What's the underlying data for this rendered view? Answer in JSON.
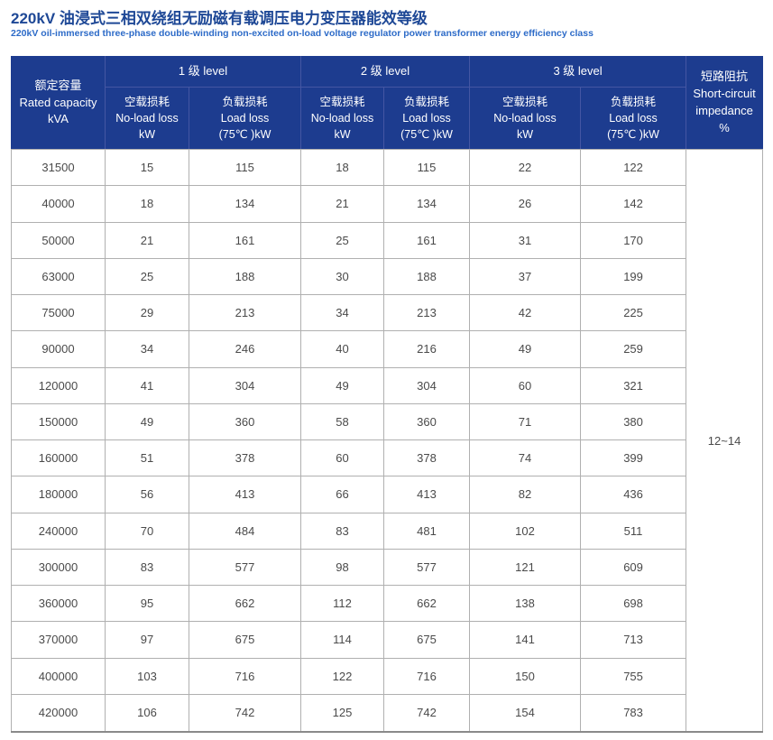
{
  "page": {
    "title": "220kV 油浸式三相双绕组无励磁有载调压电力变压器能效等级",
    "subtitle": "220kV oil-immersed three-phase double-winding non-excited on-load voltage regulator power transformer energy efficiency class"
  },
  "colors": {
    "header-bg": "#1d3c8f",
    "header-border": "#4456a3",
    "title-color": "#1e4896",
    "subtitle-color": "#2d6bc8",
    "body-border": "#b0b0b0",
    "body-text": "#4a4a4a",
    "table-bottom-border": "#8a8a8a"
  },
  "table": {
    "header": {
      "rated_capacity": "额定容量\nRated capacity\nkVA",
      "levels": [
        {
          "group": "1 级 level",
          "no_load": "空载损耗\nNo-load loss\nkW",
          "load": "负载损耗\nLoad loss\n(75℃ )kW"
        },
        {
          "group": "2 级 level",
          "no_load": "空载损耗\nNo-load loss\nkW",
          "load": "负载损耗\nLoad loss\n(75℃ )kW"
        },
        {
          "group": "3 级 level",
          "no_load": "空载损耗\nNo-load loss\nkW",
          "load": "负载损耗\nLoad loss\n(75℃ )kW"
        }
      ],
      "impedance": "短路阻抗\nShort-circuit\nimpedance\n%"
    },
    "rows": [
      [
        "31500",
        "15",
        "115",
        "18",
        "115",
        "22",
        "122"
      ],
      [
        "40000",
        "18",
        "134",
        "21",
        "134",
        "26",
        "142"
      ],
      [
        "50000",
        "21",
        "161",
        "25",
        "161",
        "31",
        "170"
      ],
      [
        "63000",
        "25",
        "188",
        "30",
        "188",
        "37",
        "199"
      ],
      [
        "75000",
        "29",
        "213",
        "34",
        "213",
        "42",
        "225"
      ],
      [
        "90000",
        "34",
        "246",
        "40",
        "216",
        "49",
        "259"
      ],
      [
        "120000",
        "41",
        "304",
        "49",
        "304",
        "60",
        "321"
      ],
      [
        "150000",
        "49",
        "360",
        "58",
        "360",
        "71",
        "380"
      ],
      [
        "160000",
        "51",
        "378",
        "60",
        "378",
        "74",
        "399"
      ],
      [
        "180000",
        "56",
        "413",
        "66",
        "413",
        "82",
        "436"
      ],
      [
        "240000",
        "70",
        "484",
        "83",
        "481",
        "102",
        "511"
      ],
      [
        "300000",
        "83",
        "577",
        "98",
        "577",
        "121",
        "609"
      ],
      [
        "360000",
        "95",
        "662",
        "112",
        "662",
        "138",
        "698"
      ],
      [
        "370000",
        "97",
        "675",
        "114",
        "675",
        "141",
        "713"
      ],
      [
        "400000",
        "103",
        "716",
        "122",
        "716",
        "150",
        "755"
      ],
      [
        "420000",
        "106",
        "742",
        "125",
        "742",
        "154",
        "783"
      ]
    ],
    "impedance_value": "12~14"
  }
}
